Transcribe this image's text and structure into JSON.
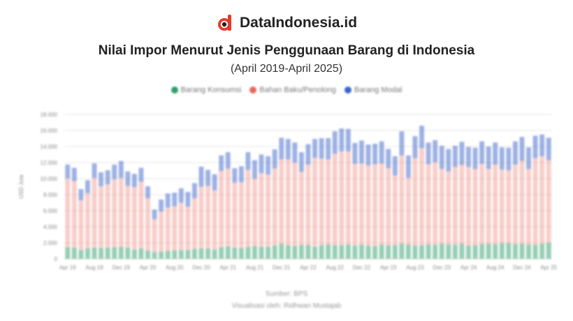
{
  "brand": {
    "name": "DataIndonesia.id",
    "logo_icon": "dataindonesia-logo-icon"
  },
  "chart_data": {
    "type": "bar",
    "stacked": true,
    "title": "Nilai Impor Menurut Jenis Penggunaan Barang di Indonesia",
    "subtitle": "(April 2019-April 2025)",
    "ylabel": "USD Juta",
    "ylim": [
      0,
      18000
    ],
    "yticks": [
      0,
      2000,
      4000,
      6000,
      8000,
      10000,
      12000,
      14000,
      16000,
      18000
    ],
    "ytick_labels": [
      "0",
      "2.000",
      "4.000",
      "6.000",
      "8.000",
      "10.000",
      "12.000",
      "14.000",
      "16.000",
      "18.000"
    ],
    "grid": true,
    "legend_position": "top-center",
    "categories": [
      "Apr 19",
      "May 19",
      "Jun 19",
      "Jul 19",
      "Aug 19",
      "Sep 19",
      "Oct 19",
      "Nov 19",
      "Dec 19",
      "Jan 20",
      "Feb 20",
      "Mar 20",
      "Apr 20",
      "May 20",
      "Jun 20",
      "Jul 20",
      "Aug 20",
      "Sep 20",
      "Oct 20",
      "Nov 20",
      "Dec 20",
      "Jan 21",
      "Feb 21",
      "Mar 21",
      "Apr 21",
      "May 21",
      "Jun 21",
      "Jul 21",
      "Aug 21",
      "Sep 21",
      "Oct 21",
      "Nov 21",
      "Dec 21",
      "Jan 22",
      "Feb 22",
      "Mar 22",
      "Apr 22",
      "May 22",
      "Jun 22",
      "Jul 22",
      "Aug 22",
      "Sep 22",
      "Oct 22",
      "Nov 22",
      "Dec 22",
      "Jan 23",
      "Feb 23",
      "Mar 23",
      "Apr 23",
      "May 23",
      "Jun 23",
      "Jul 23",
      "Aug 23",
      "Sep 23",
      "Oct 23",
      "Nov 23",
      "Dec 23",
      "Jan 24",
      "Feb 24",
      "Mar 24",
      "Apr 24",
      "May 24",
      "Jun 24",
      "Jul 24",
      "Aug 24",
      "Sep 24",
      "Oct 24",
      "Nov 24",
      "Dec 24",
      "Jan 25",
      "Feb 25",
      "Mar 25",
      "Apr 25"
    ],
    "xtick_labels": [
      {
        "index": 0,
        "label": "Apr 19"
      },
      {
        "index": 4,
        "label": "Aug 19"
      },
      {
        "index": 8,
        "label": "Dec 19"
      },
      {
        "index": 12,
        "label": "Apr 20"
      },
      {
        "index": 16,
        "label": "Aug 20"
      },
      {
        "index": 20,
        "label": "Dec 20"
      },
      {
        "index": 24,
        "label": "Apr 21"
      },
      {
        "index": 28,
        "label": "Aug 21"
      },
      {
        "index": 32,
        "label": "Dec 21"
      },
      {
        "index": 36,
        "label": "Apr 22"
      },
      {
        "index": 40,
        "label": "Aug 22"
      },
      {
        "index": 44,
        "label": "Dec 22"
      },
      {
        "index": 48,
        "label": "Apr 23"
      },
      {
        "index": 52,
        "label": "Aug 23"
      },
      {
        "index": 56,
        "label": "Dec 23"
      },
      {
        "index": 60,
        "label": "Apr 24"
      },
      {
        "index": 64,
        "label": "Aug 24"
      },
      {
        "index": 68,
        "label": "Dec 24"
      },
      {
        "index": 72,
        "label": "Apr 25"
      }
    ],
    "series": [
      {
        "name": "Barang Konsumsi",
        "color": "#2e9e6b",
        "values": [
          1450,
          1400,
          1100,
          1300,
          1400,
          1350,
          1400,
          1450,
          1500,
          1400,
          1150,
          1300,
          1050,
          850,
          900,
          1000,
          1050,
          1100,
          1100,
          1250,
          1300,
          1300,
          1150,
          1450,
          1550,
          1400,
          1350,
          1500,
          1600,
          1500,
          1500,
          1650,
          1900,
          1700,
          1600,
          1750,
          1750,
          1500,
          1700,
          1800,
          1700,
          1700,
          1800,
          1650,
          1800,
          1650,
          1600,
          1800,
          1700,
          1700,
          1900,
          1800,
          1650,
          1700,
          1800,
          1750,
          1900,
          1800,
          1750,
          1900,
          1650,
          1700,
          1850,
          1900,
          1850,
          1950,
          1950,
          1850,
          1900,
          1800,
          1750,
          1900,
          2000
        ]
      },
      {
        "name": "Bahan Baku/Penolong",
        "color": "#e8665a",
        "values": [
          8600,
          8300,
          6200,
          6900,
          8700,
          7700,
          7900,
          8500,
          8600,
          7700,
          7800,
          8300,
          6500,
          4100,
          5000,
          5400,
          5500,
          5900,
          5400,
          6300,
          7700,
          7800,
          7400,
          9500,
          9700,
          8100,
          8200,
          9600,
          8400,
          9200,
          9000,
          9600,
          10500,
          10700,
          10400,
          9100,
          10000,
          11100,
          10800,
          10600,
          11400,
          11700,
          11600,
          10200,
          10100,
          10000,
          10200,
          10100,
          9600,
          8700,
          11000,
          8300,
          10900,
          12100,
          10000,
          10300,
          9300,
          9100,
          9700,
          9800,
          9800,
          9500,
          10000,
          9300,
          9900,
          9200,
          9100,
          9900,
          10300,
          9400,
          10800,
          10900,
          10300
        ]
      },
      {
        "name": "Barang Modal",
        "color": "#3c64c8",
        "values": [
          1700,
          1650,
          1400,
          1600,
          1800,
          1750,
          1750,
          1800,
          2100,
          1800,
          1650,
          1750,
          1500,
          1200,
          1500,
          1750,
          1700,
          1800,
          1850,
          1900,
          2500,
          2000,
          2000,
          1950,
          2050,
          1800,
          2000,
          2200,
          2300,
          2300,
          2300,
          2400,
          2700,
          2550,
          2500,
          2450,
          2550,
          2350,
          2550,
          2650,
          2800,
          2850,
          2800,
          2600,
          2850,
          2600,
          2550,
          2750,
          2400,
          2400,
          3000,
          2800,
          2750,
          2800,
          2700,
          2750,
          2900,
          2800,
          2650,
          2900,
          2500,
          2650,
          2800,
          2800,
          2750,
          2750,
          2800,
          2900,
          3000,
          2700,
          2800,
          2700,
          2800
        ]
      }
    ]
  },
  "footer": {
    "source": "Sumber: BPS",
    "credit": "Visualisasi oleh: Ridhwan Mustajab"
  }
}
